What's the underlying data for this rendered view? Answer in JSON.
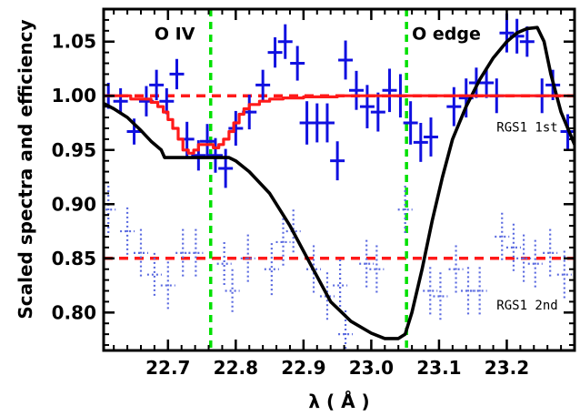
{
  "chart_data": {
    "type": "scatter",
    "title": "",
    "xlabel": "λ ( Å )",
    "ylabel": "Scaled spectra and efficiency",
    "xlim": [
      22.605,
      23.3
    ],
    "ylim": [
      0.765,
      1.08
    ],
    "xticks": [
      22.7,
      22.8,
      22.9,
      23.0,
      23.1,
      23.2
    ],
    "yticks": [
      0.8,
      0.85,
      0.9,
      0.95,
      1.0,
      1.05
    ],
    "grid": false,
    "vlines": [
      {
        "x": 22.763,
        "color": "#00e000",
        "style": "dashed"
      },
      {
        "x": 23.052,
        "color": "#00e000",
        "style": "dashed"
      }
    ],
    "hlines": [
      {
        "y": 1.0,
        "color": "#ff1a1a",
        "style": "dashed"
      },
      {
        "y": 0.85,
        "color": "#ff1a1a",
        "style": "dashed"
      }
    ],
    "annotations": [
      {
        "text": "O IV",
        "x": 22.68,
        "y": 1.052
      },
      {
        "text": "O edge",
        "x": 23.06,
        "y": 1.052
      },
      {
        "text": "RGS1 1st",
        "x": 23.185,
        "y": 0.967
      },
      {
        "text": "RGS1 2nd",
        "x": 23.185,
        "y": 0.803
      }
    ],
    "series": [
      {
        "name": "RGS1 1st",
        "style": "errorbar-solid",
        "color": "#1010e0",
        "x": [
          22.612,
          22.63,
          22.65,
          22.668,
          22.683,
          22.698,
          22.713,
          22.728,
          22.745,
          22.758,
          22.77,
          22.785,
          22.8,
          22.82,
          22.84,
          22.858,
          22.873,
          22.891,
          22.905,
          22.92,
          22.935,
          22.95,
          22.962,
          22.978,
          22.994,
          23.01,
          23.027,
          23.043,
          23.058,
          23.073,
          23.088,
          23.122,
          23.14,
          23.155,
          23.17,
          23.185,
          23.2,
          23.215,
          23.23,
          23.252,
          23.268,
          23.29
        ],
        "y": [
          1.0,
          0.995,
          0.967,
          0.995,
          1.01,
          0.995,
          1.02,
          0.96,
          0.945,
          0.958,
          0.945,
          0.933,
          0.97,
          0.985,
          1.01,
          1.04,
          1.05,
          1.03,
          0.975,
          0.975,
          0.975,
          0.94,
          1.033,
          1.005,
          0.99,
          0.985,
          1.005,
          1.0,
          0.975,
          0.957,
          0.962,
          0.99,
          0.998,
          1.012,
          1.012,
          1.0,
          1.058,
          1.055,
          1.05,
          1.0,
          1.01,
          0.967
        ],
        "yerr": [
          0.012,
          0.012,
          0.012,
          0.014,
          0.014,
          0.012,
          0.014,
          0.016,
          0.014,
          0.016,
          0.016,
          0.018,
          0.016,
          0.016,
          0.014,
          0.014,
          0.016,
          0.016,
          0.02,
          0.018,
          0.018,
          0.018,
          0.018,
          0.018,
          0.02,
          0.018,
          0.02,
          0.02,
          0.02,
          0.018,
          0.018,
          0.018,
          0.018,
          0.014,
          0.014,
          0.016,
          0.018,
          0.016,
          0.014,
          0.016,
          0.014,
          0.016
        ]
      },
      {
        "name": "RGS1 2nd",
        "style": "errorbar-dotted",
        "color": "#5a6ae0",
        "x": [
          22.612,
          22.64,
          22.66,
          22.68,
          22.7,
          22.722,
          22.741,
          22.783,
          22.795,
          22.818,
          22.853,
          22.87,
          22.885,
          22.915,
          22.935,
          22.954,
          22.962,
          22.993,
          23.008,
          23.05,
          23.087,
          23.102,
          23.125,
          23.143,
          23.16,
          23.193,
          23.21,
          23.225,
          23.242,
          23.264,
          23.285
        ],
        "y": [
          0.895,
          0.875,
          0.855,
          0.835,
          0.825,
          0.855,
          0.855,
          0.845,
          0.82,
          0.85,
          0.84,
          0.865,
          0.875,
          0.84,
          0.815,
          0.825,
          0.78,
          0.845,
          0.84,
          0.895,
          0.82,
          0.815,
          0.84,
          0.82,
          0.82,
          0.87,
          0.86,
          0.85,
          0.845,
          0.855,
          0.835
        ],
        "yerr": [
          0.022,
          0.022,
          0.022,
          0.02,
          0.022,
          0.022,
          0.022,
          0.02,
          0.02,
          0.022,
          0.024,
          0.022,
          0.02,
          0.022,
          0.022,
          0.024,
          0.022,
          0.022,
          0.022,
          0.022,
          0.022,
          0.022,
          0.022,
          0.022,
          0.022,
          0.022,
          0.022,
          0.022,
          0.022,
          0.022,
          0.022
        ]
      },
      {
        "name": "efficiency",
        "style": "line",
        "color": "#000000",
        "x": [
          22.605,
          22.62,
          22.64,
          22.66,
          22.675,
          22.69,
          22.695,
          22.72,
          22.75,
          22.78,
          22.79,
          22.8,
          22.82,
          22.85,
          22.88,
          22.91,
          22.94,
          22.97,
          23.0,
          23.02,
          23.04,
          23.05,
          23.06,
          23.075,
          23.09,
          23.105,
          23.12,
          23.14,
          23.16,
          23.18,
          23.2,
          23.215,
          23.23,
          23.245,
          23.255,
          23.265,
          23.28,
          23.3
        ],
        "y": [
          0.993,
          0.988,
          0.98,
          0.968,
          0.958,
          0.95,
          0.943,
          0.943,
          0.943,
          0.943,
          0.943,
          0.94,
          0.93,
          0.91,
          0.88,
          0.845,
          0.81,
          0.792,
          0.781,
          0.776,
          0.776,
          0.78,
          0.8,
          0.84,
          0.885,
          0.925,
          0.96,
          0.99,
          1.015,
          1.035,
          1.05,
          1.058,
          1.062,
          1.063,
          1.05,
          1.02,
          0.985,
          0.955
        ]
      },
      {
        "name": "model",
        "style": "step",
        "color": "#ff1a1a",
        "x": [
          22.605,
          22.63,
          22.645,
          22.66,
          22.675,
          22.685,
          22.693,
          22.7,
          22.707,
          22.715,
          22.722,
          22.73,
          22.738,
          22.745,
          22.752,
          22.76,
          22.767,
          22.775,
          22.782,
          22.79,
          22.797,
          22.805,
          22.812,
          22.82,
          22.835,
          22.85,
          22.87,
          22.9,
          22.95,
          23.0,
          23.3
        ],
        "y": [
          1.0,
          1.0,
          0.997,
          0.997,
          0.994,
          0.99,
          0.985,
          0.978,
          0.97,
          0.96,
          0.95,
          0.947,
          0.95,
          0.955,
          0.955,
          0.955,
          0.952,
          0.955,
          0.96,
          0.967,
          0.975,
          0.983,
          0.988,
          0.992,
          0.995,
          0.997,
          0.998,
          0.999,
          1.0,
          1.0,
          1.0
        ]
      }
    ]
  }
}
